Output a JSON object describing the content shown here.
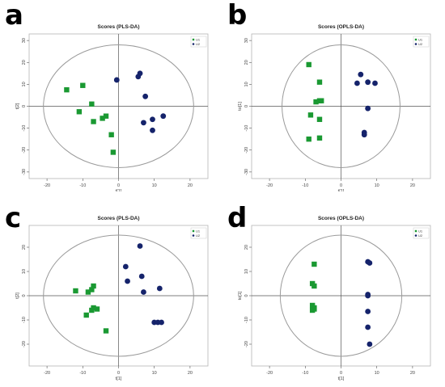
{
  "colors": {
    "u1": "#1a9932",
    "u2": "#15236b",
    "ellipse": "#9a9a9a",
    "frame": "#b5b5b5",
    "axis": "#555555"
  },
  "chart_data": [
    {
      "panel_letter": "a",
      "type": "scatter",
      "title": "Scores (PLS-DA)",
      "xlabel": "t[1]",
      "ylabel": "t[2]",
      "xlim": [
        -25,
        25
      ],
      "ylim": [
        -33,
        33
      ],
      "xticks": [
        -20,
        -10,
        0,
        10,
        20
      ],
      "yticks": [
        -30,
        -20,
        -10,
        0,
        10,
        20,
        30
      ],
      "ellipse": {
        "rx": 21,
        "ry": 28
      },
      "legend_position": "top-right",
      "series": [
        {
          "name": "U1",
          "marker": "square",
          "x": [
            -14.5,
            -11,
            -10,
            -7.5,
            -7,
            -4.5,
            -3.5,
            -2,
            -1.5
          ],
          "y": [
            7.5,
            -2.5,
            9.5,
            1,
            -7,
            -5.5,
            -4.5,
            -13,
            -21
          ]
        },
        {
          "name": "U2",
          "marker": "circle",
          "x": [
            -0.5,
            5.5,
            6,
            7.5,
            7,
            9.5,
            9.5,
            12.5
          ],
          "y": [
            12,
            13.5,
            15,
            4.5,
            -7.5,
            -6,
            -11,
            -4.5
          ]
        }
      ]
    },
    {
      "panel_letter": "b",
      "type": "scatter",
      "title": "Scores (OPLS-DA)",
      "xlabel": "t[1]",
      "ylabel": "to[1]",
      "xlim": [
        -25,
        25
      ],
      "ylim": [
        -33,
        33
      ],
      "xticks": [
        -20,
        -10,
        0,
        10,
        20
      ],
      "yticks": [
        -30,
        -20,
        -10,
        0,
        10,
        20,
        30
      ],
      "ellipse": {
        "rx": 16.5,
        "ry": 28
      },
      "legend_position": "top-right",
      "series": [
        {
          "name": "U1",
          "marker": "square",
          "x": [
            -9,
            -6,
            -7,
            -6,
            -5.5,
            -8.5,
            -6,
            -9,
            -6
          ],
          "y": [
            19,
            11,
            2,
            2.5,
            2.5,
            -4,
            -6,
            -15,
            -14.5
          ]
        },
        {
          "name": "U2",
          "marker": "circle",
          "x": [
            5.5,
            4.5,
            7.5,
            9.5,
            7.5,
            6.5,
            6.5
          ],
          "y": [
            14.5,
            10.5,
            11,
            10.5,
            -1,
            -12,
            -13
          ]
        }
      ]
    },
    {
      "panel_letter": "c",
      "type": "scatter",
      "title": "Scores (PLS-DA)",
      "xlabel": "t[1]",
      "ylabel": "t[2]",
      "xlim": [
        -25,
        25
      ],
      "ylim": [
        -29,
        29
      ],
      "xticks": [
        -20,
        -10,
        0,
        10,
        20
      ],
      "yticks": [
        -20,
        -10,
        0,
        10,
        20
      ],
      "ellipse": {
        "rx": 21,
        "ry": 25
      },
      "legend_position": "top-right",
      "series": [
        {
          "name": "U1",
          "marker": "square",
          "x": [
            -12,
            -8.5,
            -7.5,
            -7,
            -7.5,
            -6,
            -9,
            -7,
            -3.5
          ],
          "y": [
            2,
            1.5,
            2.5,
            4,
            -6,
            -5.5,
            -8,
            -5,
            -14.5
          ]
        },
        {
          "name": "U2",
          "marker": "circle",
          "x": [
            6,
            2,
            2.5,
            6.5,
            7,
            11.5,
            10,
            11,
            12
          ],
          "y": [
            20.5,
            12,
            6,
            8,
            1.5,
            3,
            -11,
            -11,
            -11
          ]
        }
      ]
    },
    {
      "panel_letter": "d",
      "type": "scatter",
      "title": "Scores (OPLS-DA)",
      "xlabel": "t[1]",
      "ylabel": "to[1]",
      "xlim": [
        -25,
        25
      ],
      "ylim": [
        -29,
        29
      ],
      "xticks": [
        -20,
        -10,
        0,
        10,
        20
      ],
      "yticks": [
        -20,
        -10,
        0,
        10,
        20
      ],
      "ellipse": {
        "rx": 17,
        "ry": 25
      },
      "legend_position": "top-right",
      "series": [
        {
          "name": "U1",
          "marker": "square",
          "x": [
            -7.5,
            -8,
            -7.5,
            -8,
            -7.5,
            -7.5,
            -8
          ],
          "y": [
            13,
            5,
            4,
            -4,
            -5,
            -5.5,
            -6
          ]
        },
        {
          "name": "U2",
          "marker": "circle",
          "x": [
            7.5,
            8,
            7.5,
            7.5,
            7.5,
            7.5,
            8
          ],
          "y": [
            14,
            13.5,
            0.5,
            0,
            -6.5,
            -13,
            -20
          ]
        }
      ]
    }
  ]
}
